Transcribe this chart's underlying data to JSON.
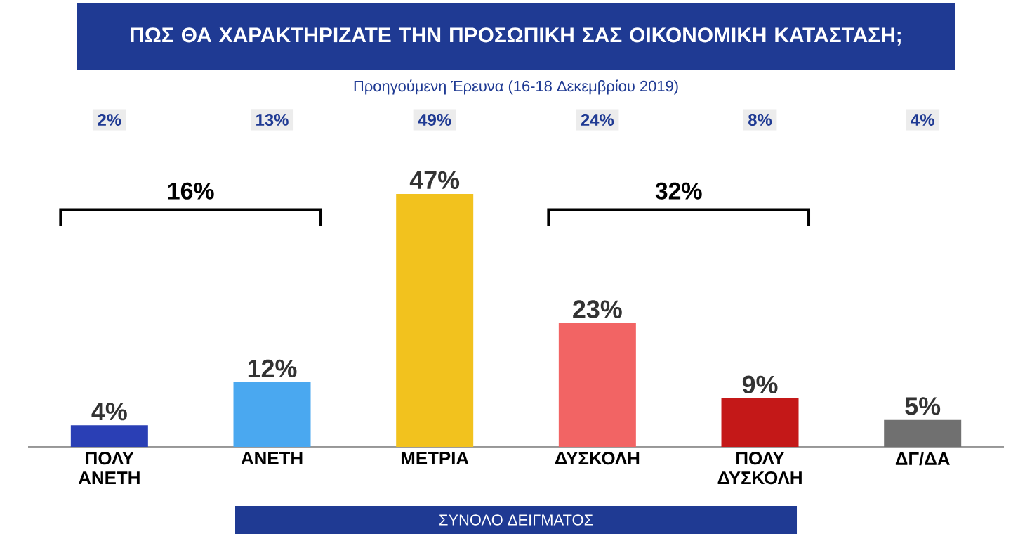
{
  "chart_data": {
    "type": "bar",
    "title": "ΠΩΣ ΘΑ ΧΑΡΑΚΤΗΡΙΖΑΤΕ ΤΗΝ ΠΡΟΣΩΠΙΚΗ ΣΑΣ ΟΙΚΟΝΟΜΙΚΗ ΚΑΤΑΣΤΑΣΗ;",
    "subtitle": "Προηγούμενη Έρευνα (16-18 Δεκεμβρίου 2019)",
    "categories": [
      "ΠΟΛΥ ΑΝΕΤΗ",
      "ΑΝΕΤΗ",
      "ΜΕΤΡΙΑ",
      "ΔΥΣΚΟΛΗ",
      "ΠΟΛΥ ΔΥΣΚΟΛΗ",
      "ΔΓ/ΔΑ"
    ],
    "values": [
      4,
      12,
      47,
      23,
      9,
      5
    ],
    "value_labels": [
      "4%",
      "12%",
      "47%",
      "23%",
      "9%",
      "5%"
    ],
    "colors": [
      "#2a3fb5",
      "#4aa8f0",
      "#f2c21e",
      "#f26464",
      "#c41818",
      "#707070"
    ],
    "annotations": [
      "2%",
      "13%",
      "49%",
      "24%",
      "8%",
      "4%",
      "16%",
      "32%",
      "ΣΥΝΟΛΟ ΔΕΙΓΜΑΤΟΣ"
    ]
  }
}
